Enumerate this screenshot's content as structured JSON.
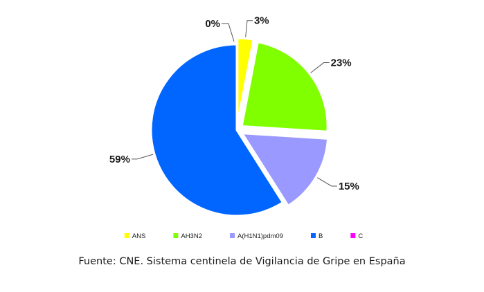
{
  "chart_data": {
    "type": "pie",
    "categories": [
      "ANS",
      "AH3N2",
      "A(H1N1)pdm09",
      "B",
      "C"
    ],
    "values": [
      3,
      23,
      15,
      59,
      0
    ],
    "data_labels": [
      "3%",
      "23%",
      "15%",
      "59%",
      "0%"
    ],
    "colors": [
      "#ffff00",
      "#80ff00",
      "#9999ff",
      "#0066ff",
      "#ff00ff"
    ],
    "legend_position": "bottom",
    "exploded_slices": [
      "ANS",
      "AH3N2",
      "A(H1N1)pdm09"
    ]
  },
  "source": "Fuente: CNE. Sistema centinela de Vigilancia de Gripe en España"
}
